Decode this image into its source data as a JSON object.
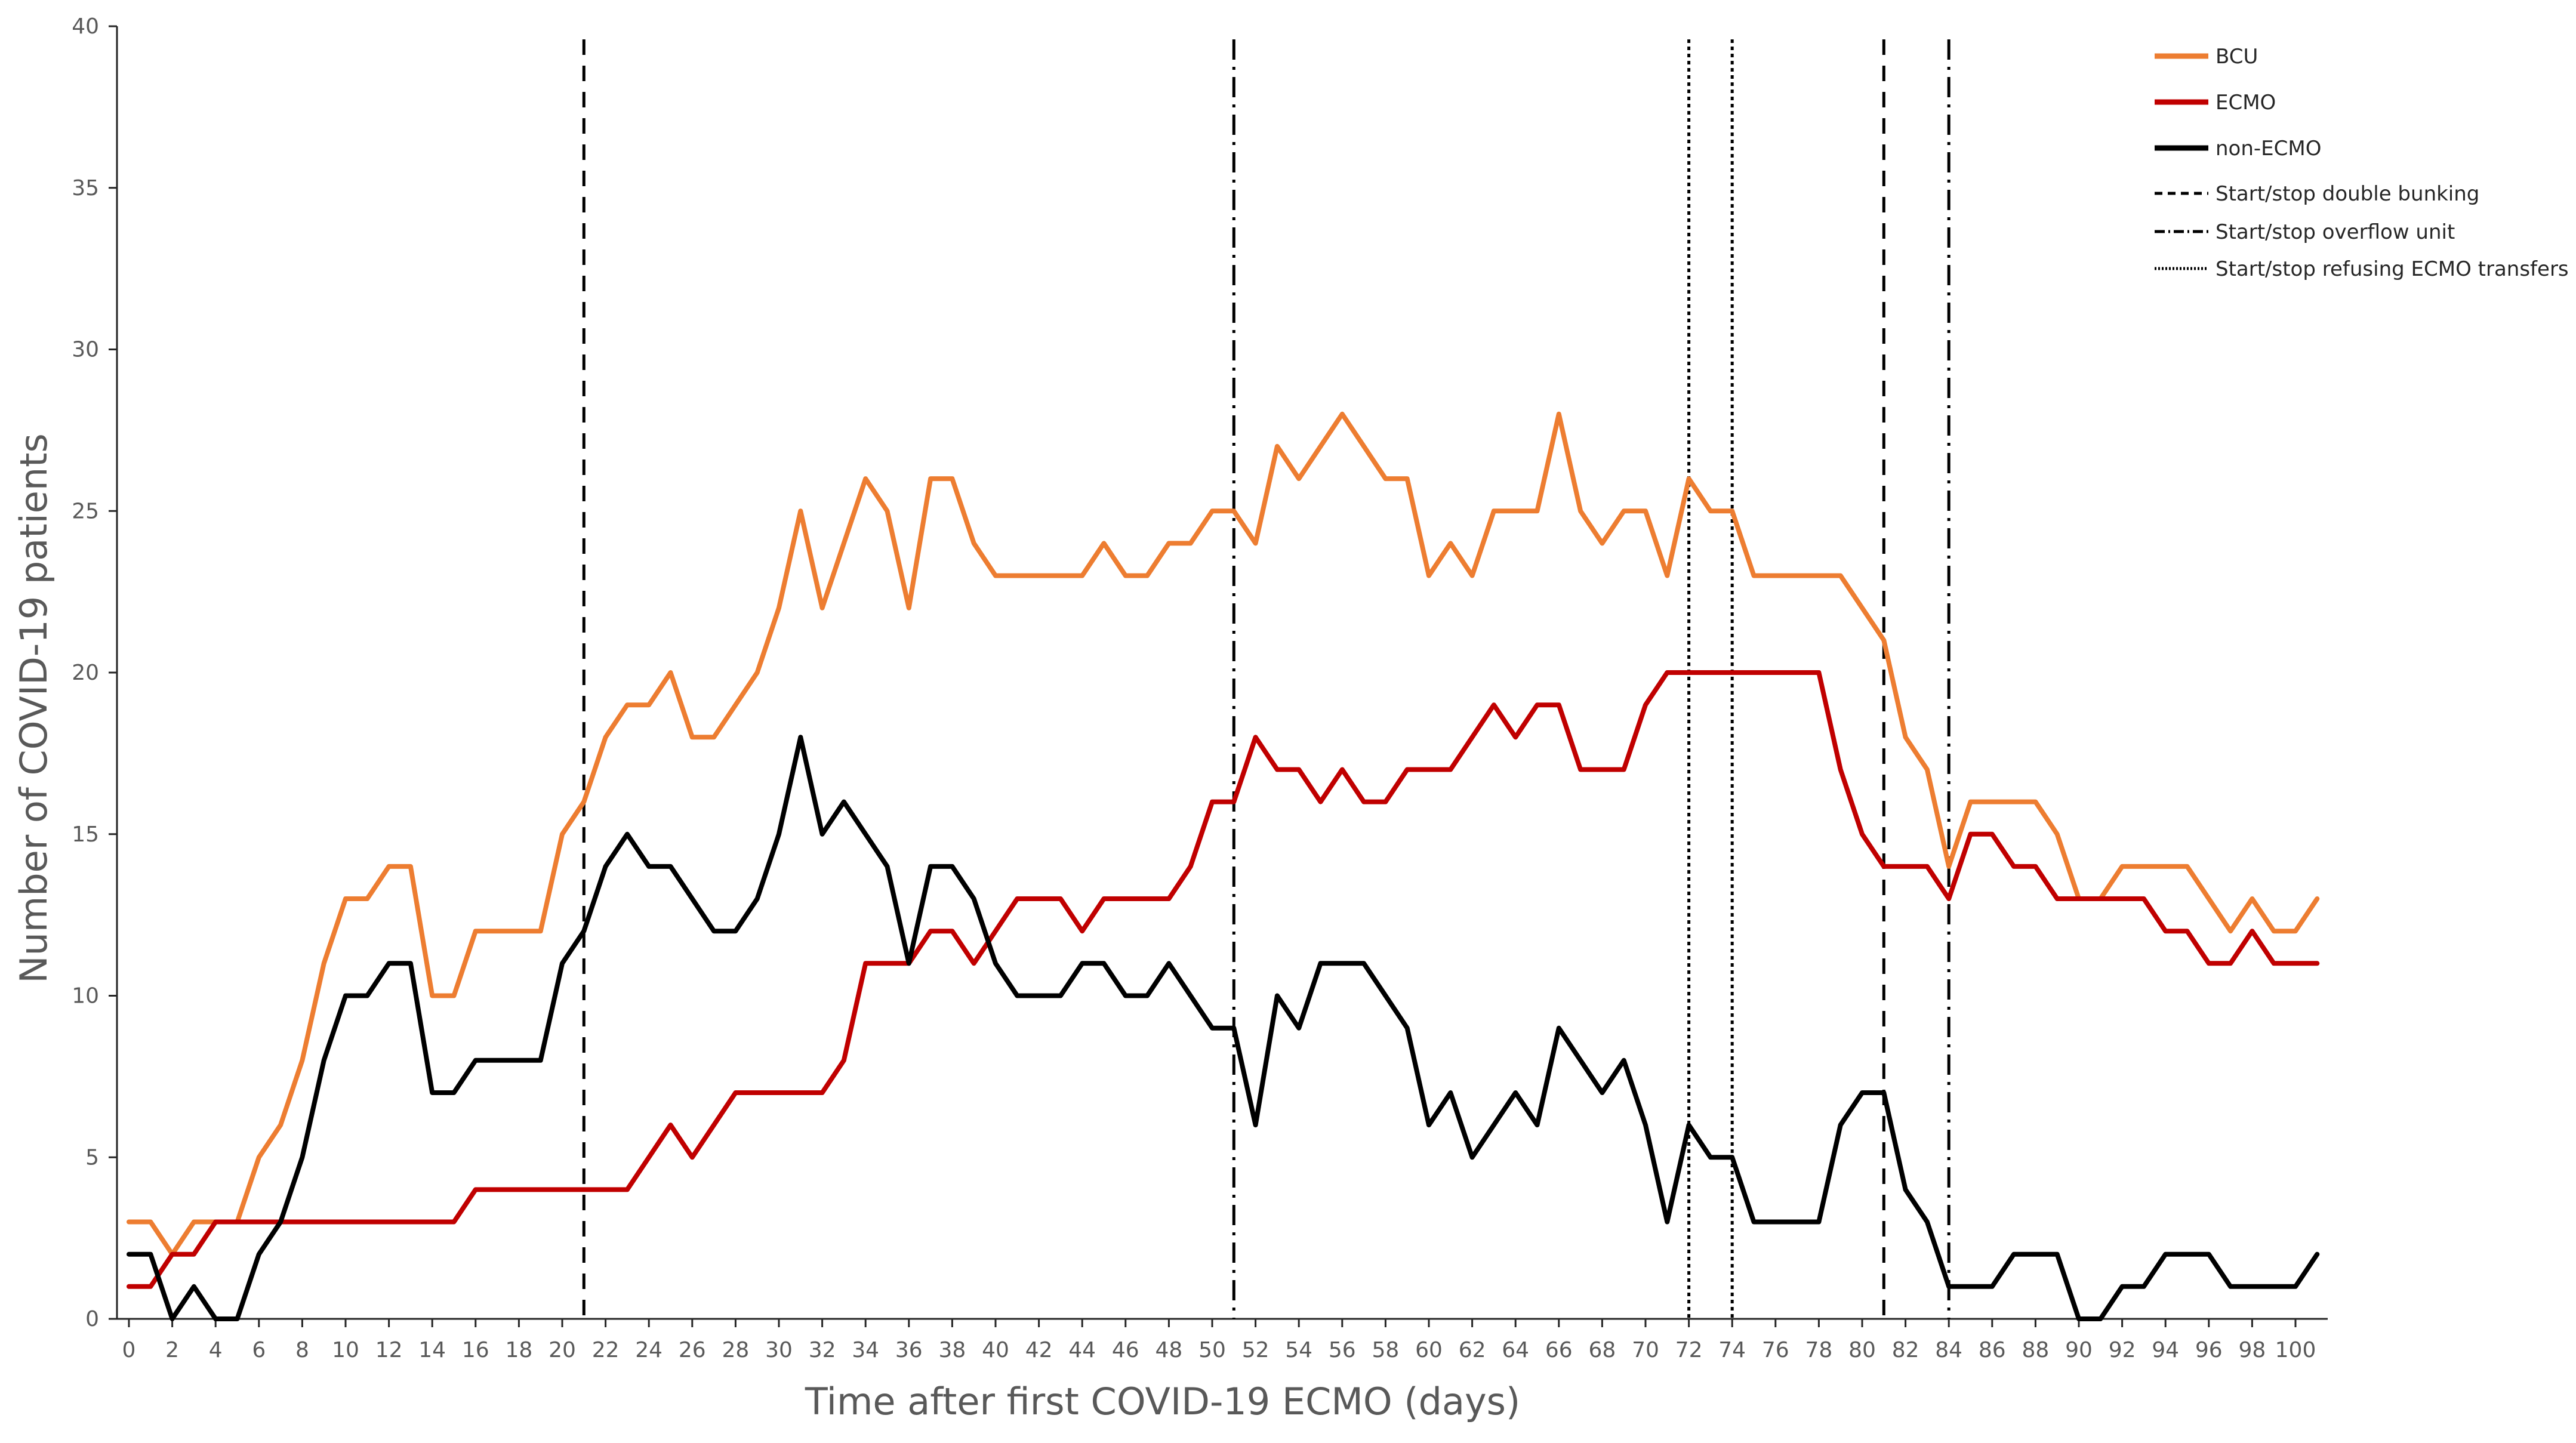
{
  "chart_data": {
    "type": "line",
    "title": "",
    "xlabel": "Time after first COVID-19 ECMO (days)",
    "ylabel": "Number of COVID-19 patients",
    "xlim": [
      0,
      101
    ],
    "ylim": [
      0,
      40
    ],
    "x_ticks": [
      0,
      2,
      4,
      6,
      8,
      10,
      12,
      14,
      16,
      18,
      20,
      22,
      24,
      26,
      28,
      30,
      32,
      34,
      36,
      38,
      40,
      42,
      44,
      46,
      48,
      50,
      52,
      54,
      56,
      58,
      60,
      62,
      64,
      66,
      68,
      70,
      72,
      74,
      76,
      78,
      80,
      82,
      84,
      86,
      88,
      90,
      92,
      94,
      96,
      98,
      100
    ],
    "y_ticks": [
      0,
      5,
      10,
      15,
      20,
      25,
      30,
      35,
      40
    ],
    "grid": false,
    "legend_position": "top-right",
    "x": [
      0,
      1,
      2,
      3,
      4,
      5,
      6,
      7,
      8,
      9,
      10,
      11,
      12,
      13,
      14,
      15,
      16,
      17,
      18,
      19,
      20,
      21,
      22,
      23,
      24,
      25,
      26,
      27,
      28,
      29,
      30,
      31,
      32,
      33,
      34,
      35,
      36,
      37,
      38,
      39,
      40,
      41,
      42,
      43,
      44,
      45,
      46,
      47,
      48,
      49,
      50,
      51,
      52,
      53,
      54,
      55,
      56,
      57,
      58,
      59,
      60,
      61,
      62,
      63,
      64,
      65,
      66,
      67,
      68,
      69,
      70,
      71,
      72,
      73,
      74,
      75,
      76,
      77,
      78,
      79,
      80,
      81,
      82,
      83,
      84,
      85,
      86,
      87,
      88,
      89,
      90,
      91,
      92,
      93,
      94,
      95,
      96,
      97,
      98,
      99,
      100,
      101
    ],
    "series": [
      {
        "name": "BCU",
        "color": "#ED7D31",
        "values": [
          3,
          3,
          2,
          3,
          3,
          3,
          5,
          6,
          8,
          11,
          13,
          13,
          14,
          14,
          10,
          10,
          12,
          12,
          12,
          12,
          15,
          16,
          18,
          19,
          19,
          20,
          18,
          18,
          19,
          20,
          22,
          25,
          22,
          24,
          26,
          25,
          22,
          26,
          26,
          24,
          23,
          23,
          23,
          23,
          23,
          24,
          23,
          23,
          24,
          24,
          25,
          25,
          24,
          27,
          26,
          27,
          28,
          27,
          26,
          26,
          23,
          24,
          23,
          25,
          25,
          25,
          28,
          25,
          24,
          25,
          25,
          23,
          26,
          25,
          25,
          23,
          23,
          23,
          23,
          23,
          22,
          21,
          18,
          17,
          14,
          16,
          16,
          16,
          16,
          15,
          13,
          13,
          14,
          14,
          14,
          14,
          13,
          12,
          13,
          12,
          12,
          13
        ]
      },
      {
        "name": "ECMO",
        "color": "#C00000",
        "values": [
          1,
          1,
          2,
          2,
          3,
          3,
          3,
          3,
          3,
          3,
          3,
          3,
          3,
          3,
          3,
          3,
          4,
          4,
          4,
          4,
          4,
          4,
          4,
          4,
          5,
          6,
          5,
          6,
          7,
          7,
          7,
          7,
          7,
          8,
          11,
          11,
          11,
          12,
          12,
          11,
          12,
          13,
          13,
          13,
          12,
          13,
          13,
          13,
          13,
          14,
          16,
          16,
          18,
          17,
          17,
          16,
          17,
          16,
          16,
          17,
          17,
          17,
          18,
          19,
          18,
          19,
          19,
          17,
          17,
          17,
          19,
          20,
          20,
          20,
          20,
          20,
          20,
          20,
          20,
          17,
          15,
          14,
          14,
          14,
          13,
          15,
          15,
          14,
          14,
          13,
          13,
          13,
          13,
          13,
          12,
          12,
          11,
          11,
          12,
          11,
          11,
          11
        ]
      },
      {
        "name": "non-ECMO",
        "color": "#000000",
        "values": [
          2,
          2,
          0,
          1,
          0,
          0,
          2,
          3,
          5,
          8,
          10,
          10,
          11,
          11,
          7,
          7,
          8,
          8,
          8,
          8,
          11,
          12,
          14,
          15,
          14,
          14,
          13,
          12,
          12,
          13,
          15,
          18,
          15,
          16,
          15,
          14,
          11,
          14,
          14,
          13,
          11,
          10,
          10,
          10,
          11,
          11,
          10,
          10,
          11,
          10,
          9,
          9,
          6,
          10,
          9,
          11,
          11,
          11,
          10,
          9,
          6,
          7,
          5,
          6,
          7,
          6,
          9,
          8,
          7,
          8,
          6,
          3,
          6,
          5,
          5,
          3,
          3,
          3,
          3,
          6,
          7,
          7,
          4,
          3,
          1,
          1,
          1,
          2,
          2,
          2,
          0,
          0,
          1,
          1,
          2,
          2,
          2,
          1,
          1,
          1,
          1,
          2
        ]
      }
    ],
    "reference_lines": [
      {
        "name": "Start/stop double bunking",
        "style": "dashed",
        "x_values": [
          21,
          81
        ]
      },
      {
        "name": "Start/stop overflow unit",
        "style": "dash-dot",
        "x_values": [
          51,
          84
        ]
      },
      {
        "name": "Start/stop refusing ECMO transfers",
        "style": "dotted",
        "x_values": [
          72,
          74
        ]
      }
    ]
  }
}
